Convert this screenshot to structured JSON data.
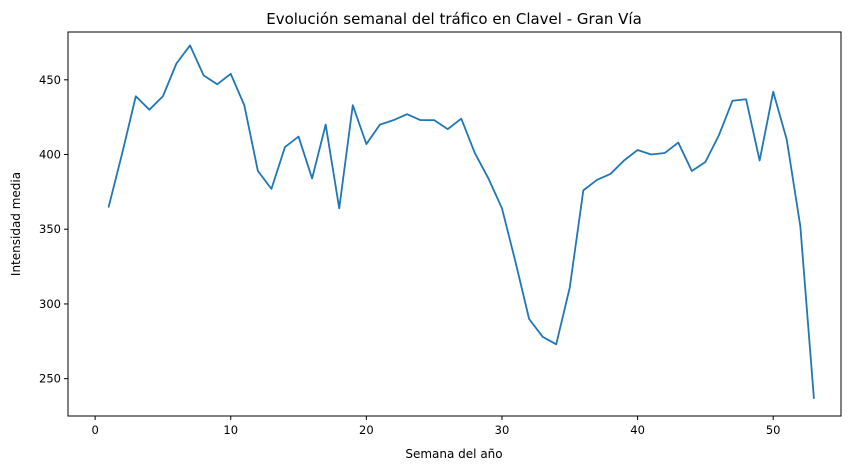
{
  "chart_data": {
    "type": "line",
    "title": "Evolución semanal del tráfico en Clavel - Gran Vía",
    "xlabel": "Semana del año",
    "ylabel": "Intensidad media",
    "xlim": [
      -2,
      55
    ],
    "ylim": [
      225,
      482
    ],
    "xticks": [
      0,
      10,
      20,
      30,
      40,
      50
    ],
    "yticks": [
      250,
      300,
      350,
      400,
      450
    ],
    "grid": false,
    "series": [
      {
        "color": "#1f77b4",
        "x": [
          1,
          2,
          3,
          4,
          5,
          6,
          7,
          8,
          9,
          10,
          11,
          12,
          13,
          14,
          15,
          16,
          17,
          18,
          19,
          20,
          21,
          22,
          23,
          24,
          25,
          26,
          27,
          28,
          29,
          30,
          31,
          32,
          33,
          34,
          35,
          36,
          37,
          38,
          39,
          40,
          41,
          42,
          43,
          44,
          45,
          46,
          47,
          48,
          49,
          50,
          51,
          52,
          53
        ],
        "y": [
          365,
          401,
          439,
          430,
          439,
          461,
          473,
          453,
          447,
          454,
          433,
          389,
          377,
          405,
          412,
          384,
          420,
          364,
          433,
          407,
          420,
          423,
          427,
          423,
          423,
          417,
          424,
          401,
          384,
          364,
          328,
          290,
          278,
          273,
          311,
          376,
          383,
          387,
          396,
          403,
          400,
          401,
          408,
          389,
          395,
          413,
          436,
          437,
          396,
          442,
          410,
          352,
          237
        ]
      }
    ]
  }
}
